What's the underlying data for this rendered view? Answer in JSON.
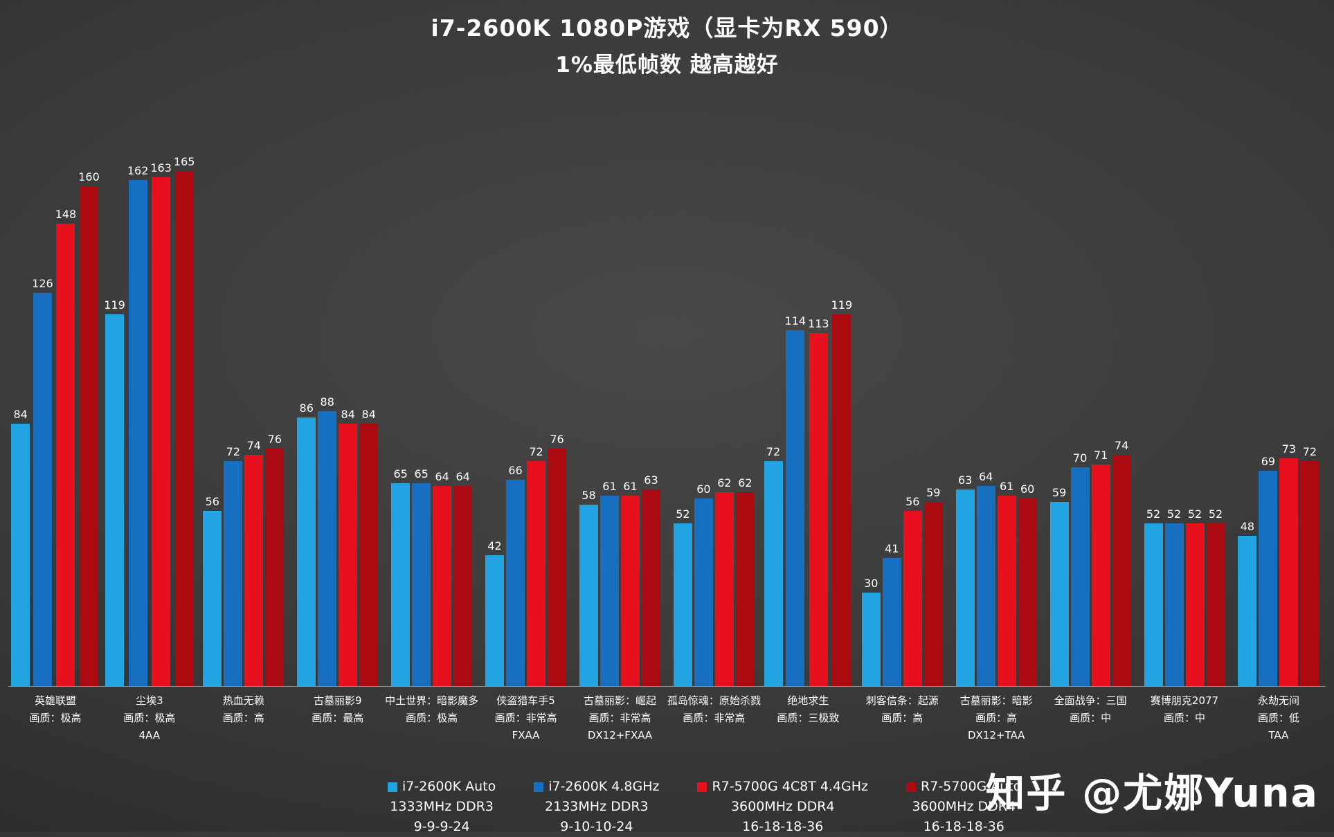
{
  "title": {
    "line1": "i7-2600K 1080P游戏（显卡为RX 590）",
    "line2": "1%最低帧数 越高越好"
  },
  "watermark": "知乎 @尤娜Yuna",
  "chart_data": {
    "type": "bar",
    "title": "i7-2600K 1080P游戏（显卡为RX 590） 1%最低帧数 越高越好",
    "xlabel": "",
    "ylabel": "1%最低帧数",
    "ylim": [
      0,
      180
    ],
    "grid": false,
    "legend_position": "bottom",
    "categories": [
      {
        "lines": [
          "英雄联盟",
          "画质：极高"
        ]
      },
      {
        "lines": [
          "尘埃3",
          "画质：极高",
          "4AA"
        ]
      },
      {
        "lines": [
          "热血无赖",
          "画质：高"
        ]
      },
      {
        "lines": [
          "古墓丽影9",
          "画质：最高"
        ]
      },
      {
        "lines": [
          "中土世界：暗影魔多",
          "画质：极高"
        ]
      },
      {
        "lines": [
          "侠盗猎车手5",
          "画质：非常高",
          "FXAA"
        ]
      },
      {
        "lines": [
          "古墓丽影：崛起",
          "画质：非常高",
          "DX12+FXAA"
        ]
      },
      {
        "lines": [
          "孤岛惊魂：原始杀戮",
          "画质：非常高"
        ]
      },
      {
        "lines": [
          "绝地求生",
          "画质：三极致"
        ]
      },
      {
        "lines": [
          "刺客信条：起源",
          "画质：高"
        ]
      },
      {
        "lines": [
          "古墓丽影：暗影",
          "画质：高",
          "DX12+TAA"
        ]
      },
      {
        "lines": [
          "全面战争：三国",
          "画质：中"
        ]
      },
      {
        "lines": [
          "赛博朋克2077",
          "画质：中"
        ]
      },
      {
        "lines": [
          "永劫无间",
          "画质：低",
          "TAA"
        ]
      }
    ],
    "series": [
      {
        "name": "i7-2600K Auto",
        "sub1": "1333MHz DDR3",
        "sub2": "9-9-9-24",
        "color": "#22A3E2",
        "values": [
          84,
          119,
          56,
          86,
          65,
          42,
          58,
          52,
          72,
          30,
          63,
          59,
          52,
          48
        ]
      },
      {
        "name": "i7-2600K 4.8GHz",
        "sub1": "2133MHz DDR3",
        "sub2": "9-10-10-24",
        "color": "#176FC1",
        "values": [
          126,
          162,
          72,
          88,
          65,
          66,
          61,
          60,
          114,
          41,
          64,
          70,
          52,
          69
        ]
      },
      {
        "name": "R7-5700G 4C8T 4.4GHz",
        "sub1": "3600MHz DDR4",
        "sub2": "16-18-18-36",
        "color": "#E8101C",
        "values": [
          148,
          163,
          74,
          84,
          64,
          72,
          61,
          62,
          113,
          56,
          61,
          71,
          52,
          73
        ]
      },
      {
        "name": "R7-5700G Auto",
        "sub1": "3600MHz DDR4",
        "sub2": "16-18-18-36",
        "color": "#AB0A10",
        "values": [
          160,
          165,
          76,
          84,
          64,
          76,
          63,
          62,
          119,
          59,
          60,
          74,
          52,
          72
        ]
      }
    ]
  }
}
